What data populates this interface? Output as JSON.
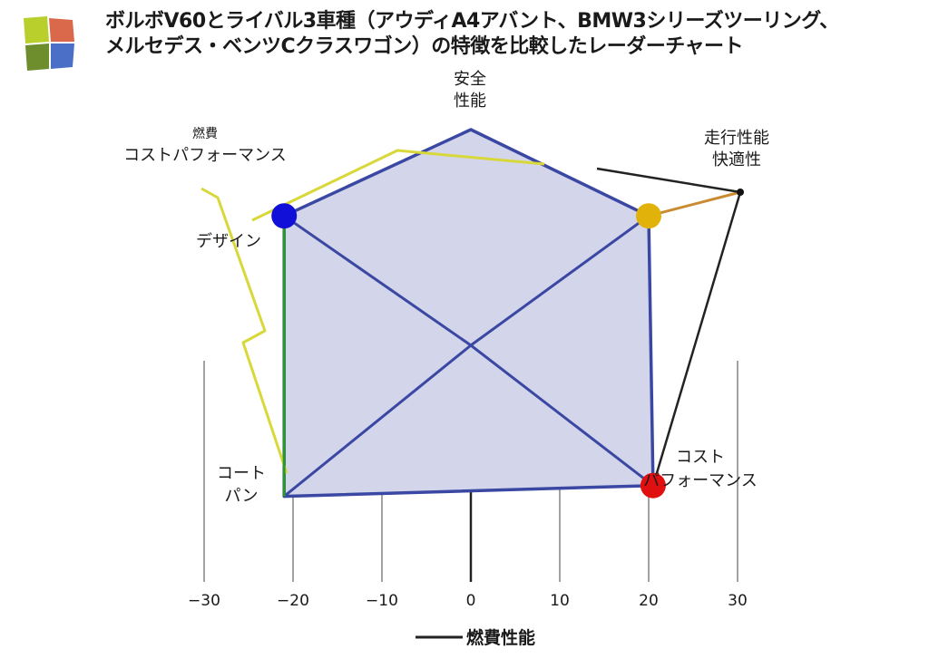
{
  "header": {
    "title_line1": "ボルボV60とライバル3車種（アウディA4アバント、BMW3シリーズツーリング、",
    "title_line2": "メルセデス・ベンツCクラスワゴン）の特徴を比較したレーダーチャート"
  },
  "logo": {
    "icon": "colored-squares-logo",
    "colors": [
      "#b9cf2b",
      "#d9694a",
      "#6e8d2d",
      "#4b6fc7"
    ]
  },
  "chart_data": {
    "type": "radar",
    "axis_labels": {
      "top": [
        "安全",
        "性能"
      ],
      "top_right": [
        "走行性能",
        "快適性"
      ],
      "left": [
        "デザイン"
      ],
      "upper_left": [
        "燃費",
        "コストパフォーマンス"
      ],
      "lower_left": [
        "コート",
        "パン"
      ],
      "lower_right": [
        "コスト",
        "パフォーマンス"
      ]
    },
    "x_axis": {
      "ticks": [
        -30,
        -20,
        -10,
        0,
        10,
        20,
        30
      ],
      "range": [
        -30,
        30
      ],
      "label": "燃費性能"
    },
    "polygon_points": [
      {
        "x": 0,
        "y": 10
      },
      {
        "x": 20,
        "y": 6
      },
      {
        "x": 20.5,
        "y": -6.5
      },
      {
        "x": -21,
        "y": -7
      },
      {
        "x": -21,
        "y": 6
      }
    ],
    "series_points": [
      {
        "x": -21,
        "y": 6,
        "color": "#1010d8"
      },
      {
        "x": 20,
        "y": 6,
        "color": "#e1b20a"
      },
      {
        "x": 20.5,
        "y": -6.5,
        "color": "#e01010"
      }
    ],
    "polygon_color": "#3b48a3",
    "fill_color": "#d3d5ea",
    "grid": true
  }
}
